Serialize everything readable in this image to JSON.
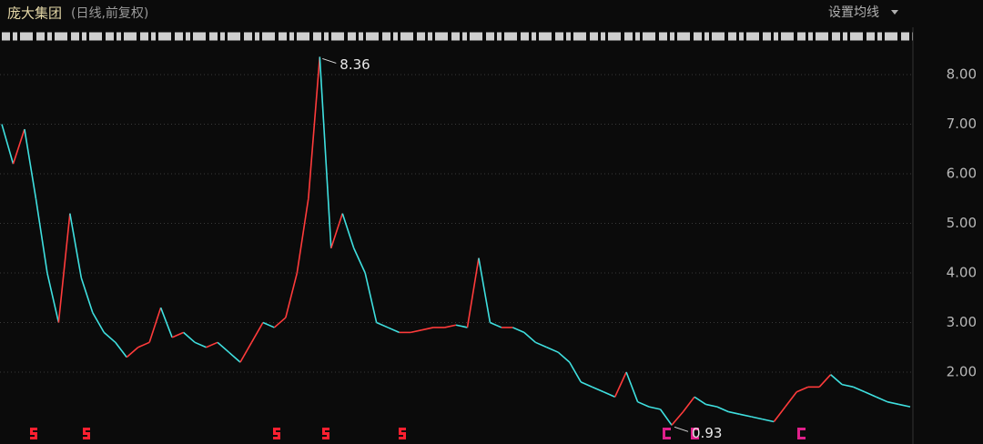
{
  "chart_data": {
    "type": "line",
    "title": "庞大集团",
    "subtitle": "(日线,前复权)",
    "menu": "设置均线",
    "up_color": "#ff3b3b",
    "down_color": "#3fe0e0",
    "grid": true,
    "ylim": [
      0.55,
      8.68
    ],
    "yticks": [
      {
        "value": 2,
        "label": "2.00"
      },
      {
        "value": 3,
        "label": "3.00"
      },
      {
        "value": 4,
        "label": "4.00"
      },
      {
        "value": 5,
        "label": "5.00"
      },
      {
        "value": 6,
        "label": "6.00"
      },
      {
        "value": 7,
        "label": "7.00"
      },
      {
        "value": 8,
        "label": "8.00"
      }
    ],
    "categories": [
      null,
      null,
      null,
      null,
      null,
      null,
      null,
      null,
      null,
      null,
      null,
      null,
      null,
      null,
      null,
      null,
      null,
      null,
      null,
      null,
      null,
      null,
      null,
      null,
      null,
      null,
      null,
      null,
      null,
      null,
      null,
      null,
      null,
      null,
      null,
      null,
      null,
      null,
      null,
      null,
      null,
      null,
      null,
      null,
      null,
      null,
      null,
      null,
      null,
      null,
      null,
      null,
      null,
      null,
      null,
      null,
      null,
      null,
      null,
      null,
      null,
      null,
      null,
      null,
      null,
      null,
      null,
      null,
      null,
      null,
      null,
      null,
      null,
      null,
      null,
      null,
      null,
      null,
      null,
      null,
      null
    ],
    "values": [
      7.0,
      6.2,
      6.9,
      5.5,
      4.0,
      3.0,
      5.2,
      3.9,
      3.2,
      2.8,
      2.6,
      2.3,
      2.5,
      2.6,
      3.3,
      2.7,
      2.8,
      2.6,
      2.5,
      2.6,
      2.4,
      2.2,
      2.6,
      3.0,
      2.9,
      3.1,
      4.0,
      5.5,
      8.36,
      4.5,
      5.2,
      4.5,
      4.0,
      3.0,
      2.9,
      2.8,
      2.8,
      2.85,
      2.9,
      2.9,
      2.95,
      2.9,
      4.3,
      3.0,
      2.9,
      2.9,
      2.8,
      2.6,
      2.5,
      2.4,
      2.2,
      1.8,
      1.7,
      1.6,
      1.5,
      2.0,
      1.4,
      1.3,
      1.25,
      0.93,
      1.2,
      1.5,
      1.35,
      1.3,
      1.2,
      1.15,
      1.1,
      1.05,
      1.0,
      1.3,
      1.6,
      1.7,
      1.7,
      1.95,
      1.75,
      1.7,
      1.6,
      1.5,
      1.4,
      1.35,
      1.3
    ]
  }
}
